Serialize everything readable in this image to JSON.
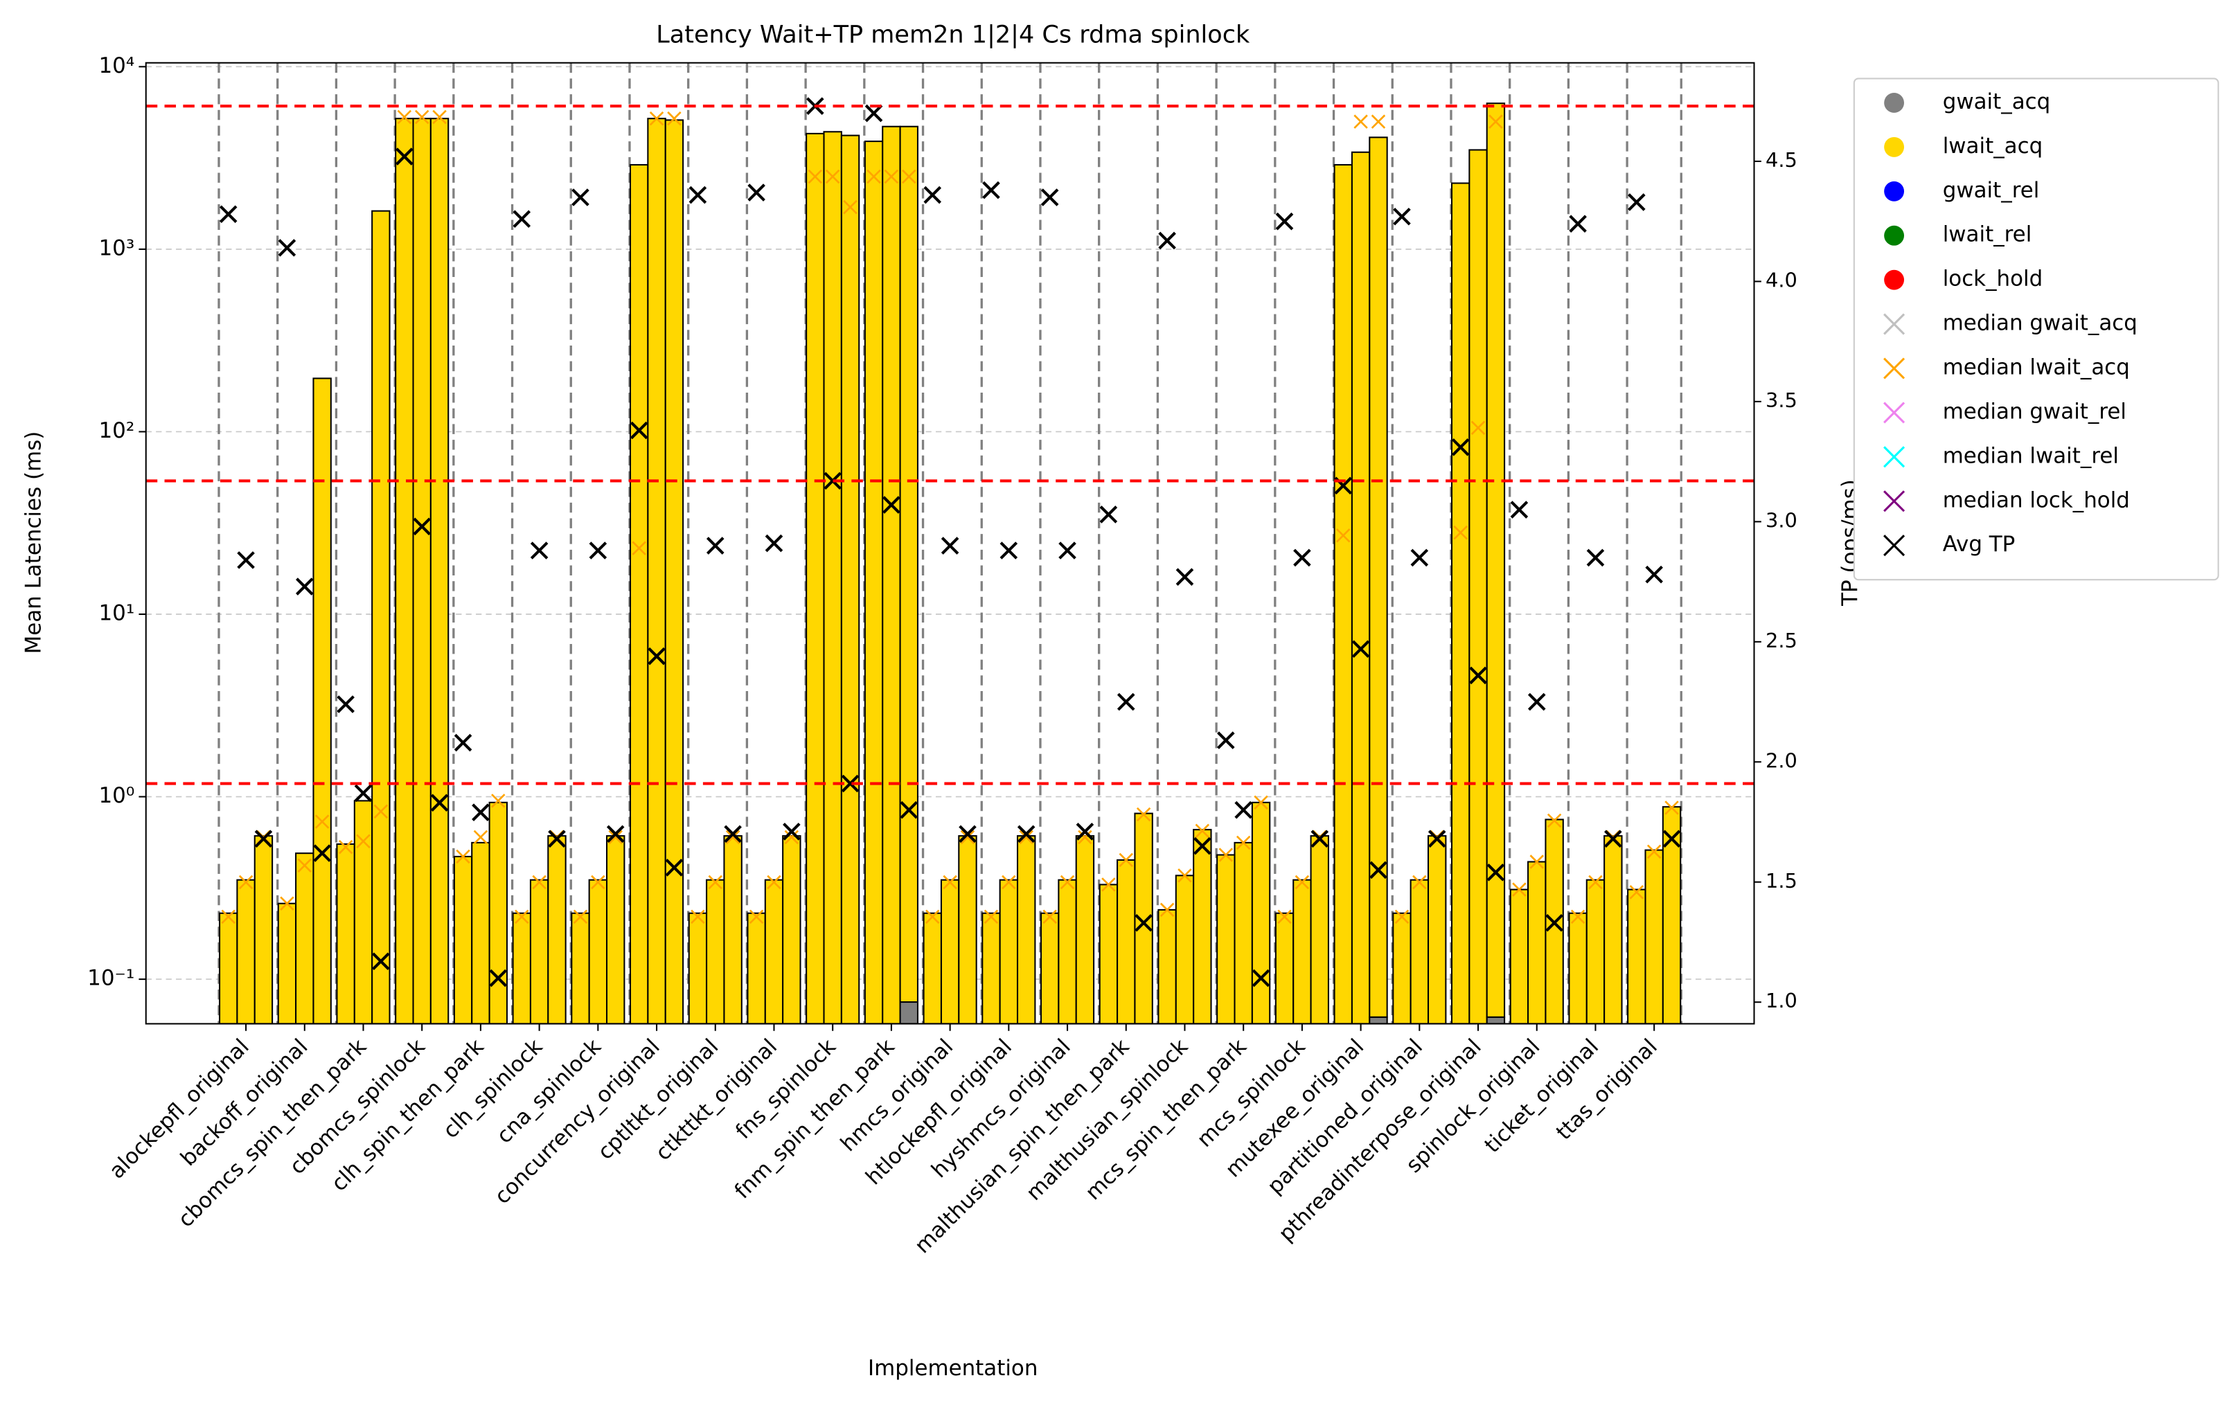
{
  "chart_data": {
    "type": "grouped_stacked_bar",
    "title": "Latency Wait+TP mem2n 1|2|4 Cs rdma spinlock",
    "xlabel": "Implementation",
    "ylabel": "Mean Latencies (ms)",
    "y2label": "TP (ops/ms)",
    "yscale": "log",
    "ylim": [
      0.057,
      10500
    ],
    "yticks": [
      {
        "value": 0.1,
        "label": "10⁻¹"
      },
      {
        "value": 1,
        "label": "10⁰"
      },
      {
        "value": 10,
        "label": "10¹"
      },
      {
        "value": 100,
        "label": "10²"
      },
      {
        "value": 1000,
        "label": "10³"
      },
      {
        "value": 10000,
        "label": "10⁴"
      }
    ],
    "y2lim": [
      0.91,
      4.91
    ],
    "y2ticks": [
      {
        "value": 1,
        "label": "1.0"
      },
      1.5,
      {
        "value": 2,
        "label": "2.0"
      },
      2.5,
      {
        "value": 3,
        "label": "3.0"
      },
      3.5,
      {
        "value": 4,
        "label": "4.0"
      },
      4.5
    ],
    "grid": true,
    "legend": "outside upper right",
    "reference_lines": {
      "axis": "y2",
      "color": "#ff0000",
      "values": [
        4.73,
        3.17,
        1.91
      ]
    },
    "categories": [
      "alockepfl_original",
      "backoff_original",
      "cbomcs_spin_then_park",
      "cbomcs_spinlock",
      "clh_spin_then_park",
      "clh_spinlock",
      "cna_spinlock",
      "concurrency_original",
      "cptltkt_original",
      "ctkttkt_original",
      "fns_spinlock",
      "fnm_spin_then_park",
      "hmcs_original",
      "htlockepfl_original",
      "hyshmcs_original",
      "malthusian_spin_then_park",
      "malthusian_spinlock",
      "mcs_spin_then_park",
      "mcs_spinlock",
      "mutexee_original",
      "partitioned_original",
      "pthreadinterpose_original",
      "spinlock_original",
      "ticket_original",
      "ttas_original"
    ],
    "series": [
      {
        "name": "gwait_acq",
        "color": "#808080",
        "marker": "o",
        "kind": "bar",
        "values": [
          [
            null,
            null,
            null
          ],
          [
            null,
            null,
            null
          ],
          [
            null,
            null,
            null
          ],
          [
            null,
            null,
            null
          ],
          [
            null,
            null,
            null
          ],
          [
            null,
            null,
            null
          ],
          [
            null,
            null,
            null
          ],
          [
            null,
            null,
            null
          ],
          [
            null,
            null,
            null
          ],
          [
            null,
            null,
            null
          ],
          [
            null,
            null,
            null
          ],
          [
            null,
            null,
            0.075
          ],
          [
            null,
            null,
            null
          ],
          [
            null,
            null,
            null
          ],
          [
            null,
            null,
            null
          ],
          [
            null,
            null,
            null
          ],
          [
            null,
            null,
            null
          ],
          [
            null,
            null,
            null
          ],
          [
            null,
            null,
            null
          ],
          [
            null,
            null,
            0.062
          ],
          [
            null,
            null,
            null
          ],
          [
            null,
            null,
            0.062
          ],
          [
            null,
            null,
            null
          ],
          [
            null,
            null,
            null
          ],
          [
            null,
            null,
            null
          ]
        ]
      },
      {
        "name": "lwait_acq",
        "color": "#ffd700",
        "marker": "o",
        "kind": "bar",
        "values": [
          [
            0.23,
            0.35,
            0.61
          ],
          [
            0.26,
            0.49,
            196
          ],
          [
            0.55,
            0.95,
            1620
          ],
          [
            5200,
            5200,
            5200
          ],
          [
            0.47,
            0.56,
            0.93
          ],
          [
            0.23,
            0.35,
            0.61
          ],
          [
            0.23,
            0.35,
            0.61
          ],
          [
            2900,
            5200,
            5100
          ],
          [
            0.23,
            0.35,
            0.61
          ],
          [
            0.23,
            0.35,
            0.61
          ],
          [
            4300,
            4400,
            4200
          ],
          [
            3900,
            4700,
            4700
          ],
          [
            0.23,
            0.35,
            0.61
          ],
          [
            0.23,
            0.35,
            0.61
          ],
          [
            0.23,
            0.35,
            0.61
          ],
          [
            0.33,
            0.45,
            0.81
          ],
          [
            0.24,
            0.37,
            0.66
          ],
          [
            0.48,
            0.56,
            0.93
          ],
          [
            0.23,
            0.35,
            0.61
          ],
          [
            2900,
            3400,
            4100
          ],
          [
            0.23,
            0.35,
            0.61
          ],
          [
            2300,
            3500,
            6300
          ],
          [
            0.31,
            0.44,
            0.75
          ],
          [
            0.23,
            0.35,
            0.61
          ],
          [
            0.31,
            0.51,
            0.88
          ]
        ]
      },
      {
        "name": "gwait_rel",
        "color": "#0000ff",
        "marker": "o"
      },
      {
        "name": "lwait_rel",
        "color": "#008000",
        "marker": "o"
      },
      {
        "name": "lock_hold",
        "color": "#ff0000",
        "marker": "o"
      },
      {
        "name": "median gwait_acq",
        "color": "#c0c0c0",
        "marker": "x"
      },
      {
        "name": "median lwait_acq",
        "color": "#ffa500",
        "marker": "x",
        "kind": "median",
        "values": [
          [
            0.22,
            0.34,
            0.6
          ],
          [
            0.26,
            0.42,
            0.73
          ],
          [
            0.53,
            0.57,
            0.83
          ],
          [
            5300,
            5300,
            5300
          ],
          [
            0.47,
            0.6,
            0.95
          ],
          [
            0.22,
            0.34,
            0.6
          ],
          [
            0.22,
            0.34,
            0.6
          ],
          [
            23,
            5200,
            5200
          ],
          [
            0.22,
            0.34,
            0.6
          ],
          [
            0.22,
            0.34,
            0.6
          ],
          [
            2500,
            2500,
            1700
          ],
          [
            2500,
            2500,
            2500
          ],
          [
            0.22,
            0.34,
            0.6
          ],
          [
            0.22,
            0.34,
            0.6
          ],
          [
            0.22,
            0.34,
            0.6
          ],
          [
            0.33,
            0.45,
            0.8
          ],
          [
            0.24,
            0.37,
            0.65
          ],
          [
            0.48,
            0.56,
            0.93
          ],
          [
            0.22,
            0.34,
            0.6
          ],
          [
            27,
            5000,
            5000
          ],
          [
            0.22,
            0.34,
            0.6
          ],
          [
            28,
            105,
            5000
          ],
          [
            0.31,
            0.44,
            0.74
          ],
          [
            0.22,
            0.34,
            0.6
          ],
          [
            0.3,
            0.5,
            0.87
          ]
        ]
      },
      {
        "name": "median gwait_rel",
        "color": "#ee82ee",
        "marker": "x"
      },
      {
        "name": "median lwait_rel",
        "color": "#00ffff",
        "marker": "x"
      },
      {
        "name": "median lock_hold",
        "color": "#800080",
        "marker": "x"
      },
      {
        "name": "Avg TP",
        "color": "#000000",
        "marker": "x",
        "kind": "tp",
        "axis": "y2",
        "values": [
          [
            4.28,
            2.84,
            1.68
          ],
          [
            4.14,
            2.73,
            1.62
          ],
          [
            2.24,
            1.87,
            1.17
          ],
          [
            4.52,
            2.98,
            1.83
          ],
          [
            2.08,
            1.79,
            1.1
          ],
          [
            4.26,
            2.88,
            1.68
          ],
          [
            4.35,
            2.88,
            1.7
          ],
          [
            3.38,
            2.44,
            1.56
          ],
          [
            4.36,
            2.9,
            1.7
          ],
          [
            4.37,
            2.91,
            1.71
          ],
          [
            4.73,
            3.17,
            1.91
          ],
          [
            4.7,
            3.07,
            1.8
          ],
          [
            4.36,
            2.9,
            1.7
          ],
          [
            4.38,
            2.88,
            1.7
          ],
          [
            4.35,
            2.88,
            1.71
          ],
          [
            3.03,
            2.25,
            1.33
          ],
          [
            4.17,
            2.77,
            1.65
          ],
          [
            2.09,
            1.8,
            1.1
          ],
          [
            4.25,
            2.85,
            1.68
          ],
          [
            3.15,
            2.47,
            1.55
          ],
          [
            4.27,
            2.85,
            1.68
          ],
          [
            3.31,
            2.36,
            1.54
          ],
          [
            3.05,
            2.25,
            1.33
          ],
          [
            4.24,
            2.85,
            1.68
          ],
          [
            4.33,
            2.78,
            1.68
          ]
        ]
      }
    ]
  }
}
